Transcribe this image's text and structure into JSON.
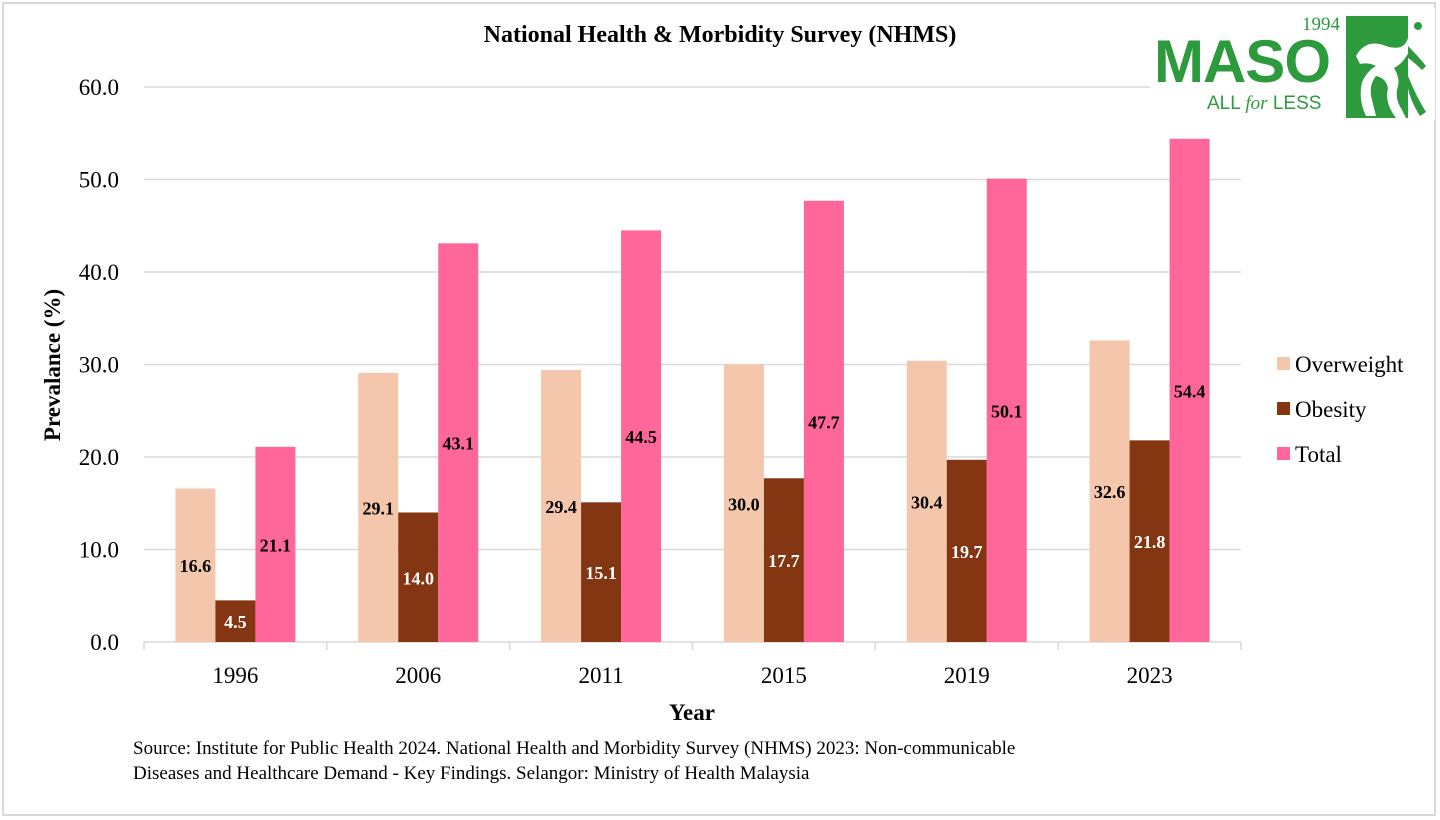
{
  "chart_data": {
    "type": "bar",
    "title": "National Health & Morbidity Survey (NHMS)",
    "xlabel": "Year",
    "ylabel": "Prevalance (%)",
    "ylim": [
      0,
      60
    ],
    "yticks": [
      "0.0",
      "10.0",
      "20.0",
      "30.0",
      "40.0",
      "50.0",
      "60.0"
    ],
    "ytick_values": [
      0,
      10,
      20,
      30,
      40,
      50,
      60
    ],
    "grid": true,
    "legend_position": "right",
    "categories": [
      "1996",
      "2006",
      "2011",
      "2015",
      "2019",
      "2023"
    ],
    "series": [
      {
        "name": "Overweight",
        "color": "#f4c6ab",
        "label_color": "#000000",
        "values": [
          16.6,
          29.1,
          29.4,
          30.0,
          30.4,
          32.6
        ],
        "labels": [
          "16.6",
          "29.1",
          "29.4",
          "30.0",
          "30.4",
          "32.6"
        ]
      },
      {
        "name": "Obesity",
        "color": "#843511",
        "label_color": "#ffffff",
        "values": [
          4.5,
          14.0,
          15.1,
          17.7,
          19.7,
          21.8
        ],
        "labels": [
          "4.5",
          "14.0",
          "15.1",
          "17.7",
          "19.7",
          "21.8"
        ]
      },
      {
        "name": "Total",
        "color": "#ff6699",
        "label_color": "#000000",
        "values": [
          21.1,
          43.1,
          44.5,
          47.7,
          50.1,
          54.4
        ],
        "labels": [
          "21.1",
          "43.1",
          "44.5",
          "47.7",
          "50.1",
          "54.4"
        ]
      }
    ]
  },
  "source_lines": [
    "Source: Institute for Public Health 2024. National Health and Morbidity Survey (NHMS) 2023: Non-communicable",
    "Diseases and Healthcare Demand - Key Findings. Selangor: Ministry of Health Malaysia"
  ],
  "logo": {
    "year": "1994",
    "name": "MASO",
    "tag_pre": "ALL ",
    "tag_mid": "for",
    "tag_post": " LESS",
    "color": "#2e9a3e"
  }
}
